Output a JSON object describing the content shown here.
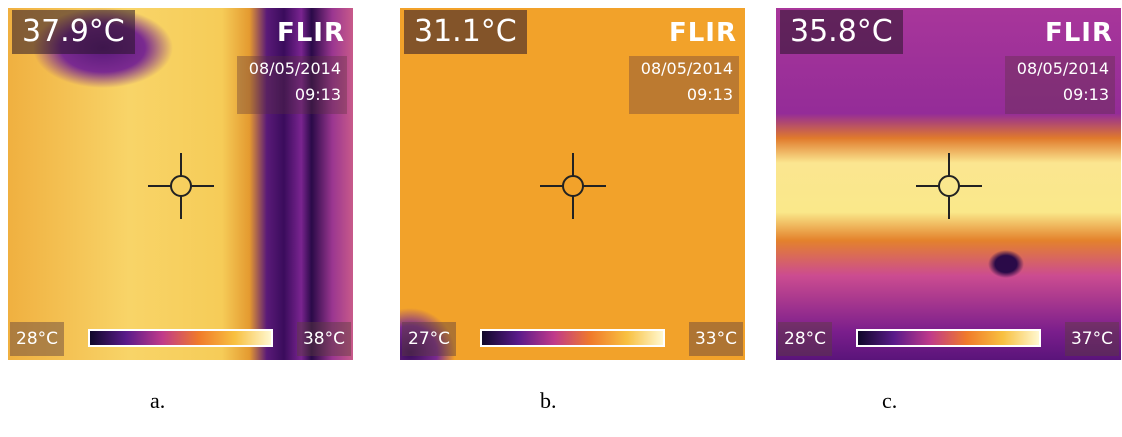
{
  "panels": [
    {
      "reading": "37.9°C",
      "brand": "FLIR",
      "date": "08/05/2014",
      "time": "09:13",
      "scale_min": "28°C",
      "scale_max": "38°C",
      "caption": "a."
    },
    {
      "reading": "31.1°C",
      "brand": "FLIR",
      "date": "08/05/2014",
      "time": "09:13",
      "scale_min": "27°C",
      "scale_max": "33°C",
      "caption": "b."
    },
    {
      "reading": "35.8°C",
      "brand": "FLIR",
      "date": "08/05/2014",
      "time": "09:13",
      "scale_min": "28°C",
      "scale_max": "37°C",
      "caption": "c."
    }
  ]
}
